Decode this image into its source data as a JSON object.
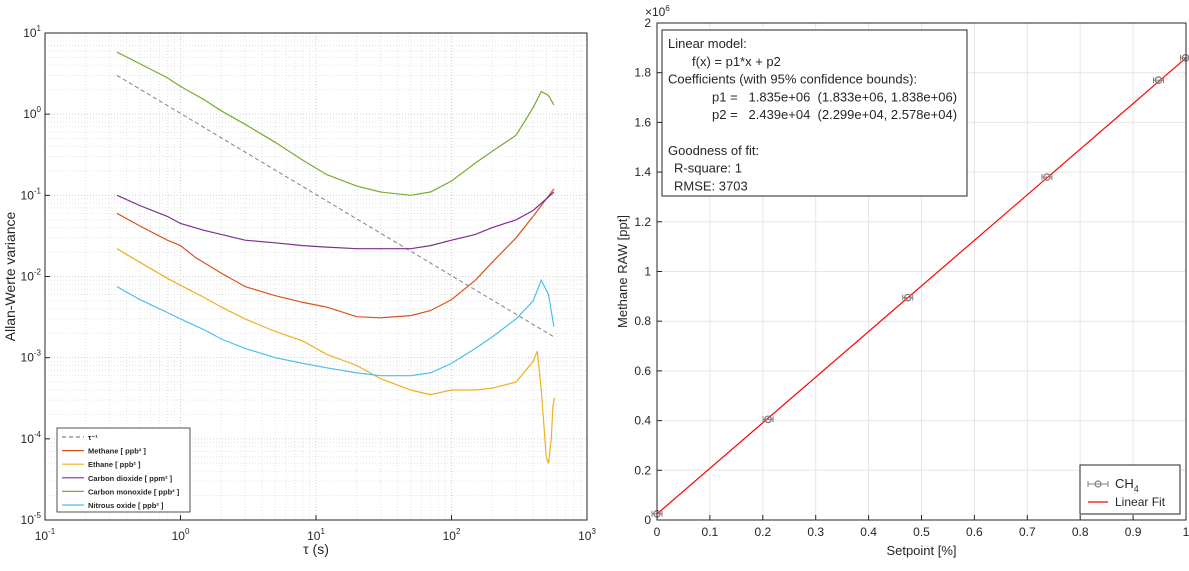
{
  "chart_data": [
    {
      "type": "line",
      "xscale": "log",
      "yscale": "log",
      "xlim": [
        0.1,
        1000
      ],
      "ylim": [
        1e-05,
        10
      ],
      "xlabel": "τ (s)",
      "ylabel": "Allan-Werte variance",
      "grid": true,
      "x_ticks": [
        0.1,
        1,
        10,
        100,
        1000
      ],
      "x_tick_labels": [
        {
          "base": "10",
          "exp": "-1"
        },
        {
          "base": "10",
          "exp": "0"
        },
        {
          "base": "10",
          "exp": "1"
        },
        {
          "base": "10",
          "exp": "2"
        },
        {
          "base": "10",
          "exp": "3"
        }
      ],
      "y_ticks": [
        1e-05,
        0.0001,
        0.001,
        0.01,
        0.1,
        1,
        10
      ],
      "y_tick_labels": [
        {
          "base": "10",
          "exp": "-5"
        },
        {
          "base": "10",
          "exp": "-4"
        },
        {
          "base": "10",
          "exp": "-3"
        },
        {
          "base": "10",
          "exp": "-2"
        },
        {
          "base": "10",
          "exp": "-1"
        },
        {
          "base": "10",
          "exp": "0"
        },
        {
          "base": "10",
          "exp": "1"
        }
      ],
      "legend_position": "bottom-left",
      "series": [
        {
          "name": "τ⁻¹",
          "color": "#808080",
          "dashed": true,
          "points": [
            [
              0.34,
              3.0
            ],
            [
              570,
              0.0018
            ]
          ]
        },
        {
          "name": "Methane [ ppb² ]",
          "color": "#d95319",
          "points": [
            [
              0.34,
              0.06
            ],
            [
              0.5,
              0.042
            ],
            [
              0.8,
              0.028
            ],
            [
              1.0,
              0.024
            ],
            [
              1.3,
              0.017
            ],
            [
              2,
              0.011
            ],
            [
              3,
              0.0075
            ],
            [
              5,
              0.0058
            ],
            [
              8,
              0.0048
            ],
            [
              12,
              0.0042
            ],
            [
              20,
              0.0032
            ],
            [
              30,
              0.0031
            ],
            [
              50,
              0.0033
            ],
            [
              70,
              0.0038
            ],
            [
              100,
              0.0052
            ],
            [
              150,
              0.009
            ],
            [
              200,
              0.015
            ],
            [
              300,
              0.03
            ],
            [
              400,
              0.055
            ],
            [
              500,
              0.09
            ],
            [
              570,
              0.12
            ]
          ]
        },
        {
          "name": "Ethane [ ppb² ]",
          "color": "#edb120",
          "points": [
            [
              0.34,
              0.022
            ],
            [
              0.5,
              0.015
            ],
            [
              0.8,
              0.0095
            ],
            [
              1.0,
              0.0078
            ],
            [
              1.5,
              0.0055
            ],
            [
              2,
              0.0042
            ],
            [
              3,
              0.003
            ],
            [
              5,
              0.0021
            ],
            [
              8,
              0.0016
            ],
            [
              12,
              0.0011
            ],
            [
              20,
              0.0008
            ],
            [
              30,
              0.00055
            ],
            [
              50,
              0.0004
            ],
            [
              70,
              0.00035
            ],
            [
              100,
              0.0004
            ],
            [
              150,
              0.0004
            ],
            [
              200,
              0.00042
            ],
            [
              300,
              0.0005
            ],
            [
              400,
              0.0009
            ],
            [
              430,
              0.0012
            ],
            [
              460,
              0.0004
            ],
            [
              500,
              6e-05
            ],
            [
              520,
              5e-05
            ],
            [
              545,
              0.0001
            ],
            [
              560,
              0.00025
            ],
            [
              575,
              0.00032
            ]
          ]
        },
        {
          "name": "Carbon dioxide [ ppm² ]",
          "color": "#7e2f8e",
          "points": [
            [
              0.34,
              0.1
            ],
            [
              0.5,
              0.075
            ],
            [
              0.8,
              0.055
            ],
            [
              1.0,
              0.045
            ],
            [
              1.5,
              0.037
            ],
            [
              2,
              0.033
            ],
            [
              3,
              0.028
            ],
            [
              5,
              0.026
            ],
            [
              8,
              0.024
            ],
            [
              12,
              0.023
            ],
            [
              20,
              0.022
            ],
            [
              30,
              0.022
            ],
            [
              50,
              0.022
            ],
            [
              70,
              0.024
            ],
            [
              100,
              0.028
            ],
            [
              150,
              0.033
            ],
            [
              200,
              0.04
            ],
            [
              300,
              0.05
            ],
            [
              400,
              0.065
            ],
            [
              500,
              0.09
            ],
            [
              570,
              0.11
            ]
          ]
        },
        {
          "name": "Carbon monoxide [ ppb² ]",
          "color": "#77ac30",
          "points": [
            [
              0.34,
              5.8
            ],
            [
              0.5,
              4.2
            ],
            [
              0.8,
              2.8
            ],
            [
              1.0,
              2.2
            ],
            [
              1.5,
              1.5
            ],
            [
              2,
              1.1
            ],
            [
              3,
              0.75
            ],
            [
              5,
              0.45
            ],
            [
              8,
              0.27
            ],
            [
              12,
              0.18
            ],
            [
              20,
              0.13
            ],
            [
              30,
              0.11
            ],
            [
              50,
              0.1
            ],
            [
              70,
              0.11
            ],
            [
              100,
              0.15
            ],
            [
              150,
              0.25
            ],
            [
              200,
              0.35
            ],
            [
              300,
              0.55
            ],
            [
              400,
              1.2
            ],
            [
              460,
              1.9
            ],
            [
              520,
              1.7
            ],
            [
              570,
              1.3
            ]
          ]
        },
        {
          "name": "Nitrous oxide [ ppb² ]",
          "color": "#4dbeee",
          "points": [
            [
              0.34,
              0.0075
            ],
            [
              0.5,
              0.0052
            ],
            [
              0.8,
              0.0036
            ],
            [
              1.0,
              0.003
            ],
            [
              1.5,
              0.0022
            ],
            [
              2,
              0.0017
            ],
            [
              3,
              0.0013
            ],
            [
              5,
              0.001
            ],
            [
              8,
              0.00085
            ],
            [
              12,
              0.00075
            ],
            [
              20,
              0.00065
            ],
            [
              30,
              0.0006
            ],
            [
              50,
              0.0006
            ],
            [
              70,
              0.00065
            ],
            [
              100,
              0.00085
            ],
            [
              150,
              0.0013
            ],
            [
              200,
              0.0018
            ],
            [
              300,
              0.003
            ],
            [
              400,
              0.005
            ],
            [
              460,
              0.009
            ],
            [
              520,
              0.006
            ],
            [
              570,
              0.0024
            ]
          ]
        }
      ]
    },
    {
      "type": "scatter",
      "xlim": [
        0,
        1
      ],
      "ylim": [
        0,
        2000000
      ],
      "xlabel": "Setpoint [%]",
      "ylabel": "Methane RAW [ppt]",
      "grid": true,
      "x_ticks": [
        0,
        0.1,
        0.2,
        0.3,
        0.4,
        0.5,
        0.6,
        0.7,
        0.8,
        0.9,
        1
      ],
      "x_tick_labels": [
        "0",
        "0.1",
        "0.2",
        "0.3",
        "0.4",
        "0.5",
        "0.6",
        "0.7",
        "0.8",
        "0.9",
        "1"
      ],
      "y_ticks": [
        0,
        200000,
        400000,
        600000,
        800000,
        1000000,
        1200000,
        1400000,
        1600000,
        1800000,
        2000000
      ],
      "y_tick_labels": [
        "0",
        "0.2",
        "0.4",
        "0.6",
        "0.8",
        "1",
        "1.2",
        "1.4",
        "1.6",
        "1.8",
        "2"
      ],
      "y_exponent": {
        "base": "×10",
        "exp": "6"
      },
      "legend_position": "bottom-right",
      "series": [
        {
          "name": "CH",
          "name_sub": "4",
          "color": "#808080",
          "points": [
            [
              0.0,
              25000
            ],
            [
              0.21,
              405000
            ],
            [
              0.474,
              895000
            ],
            [
              0.737,
              1380000
            ],
            [
              0.948,
              1770000
            ],
            [
              0.999,
              1860000
            ]
          ]
        },
        {
          "name": "Linear Fit",
          "color": "#ff0000",
          "line": true,
          "points": [
            [
              0,
              24390
            ],
            [
              1,
              1859390
            ]
          ]
        }
      ],
      "fit_box": {
        "lines": [
          "Linear model:",
          "f(x) = p1*x + p2",
          "Coefficients (with 95% confidence bounds):",
          "p1 =   1.835e+06  (1.833e+06, 1.838e+06)",
          "p2 =   2.439e+04  (2.299e+04, 2.578e+04)",
          "",
          "Goodness of fit:",
          "R-square: 1",
          "RMSE: 3703"
        ]
      }
    }
  ]
}
